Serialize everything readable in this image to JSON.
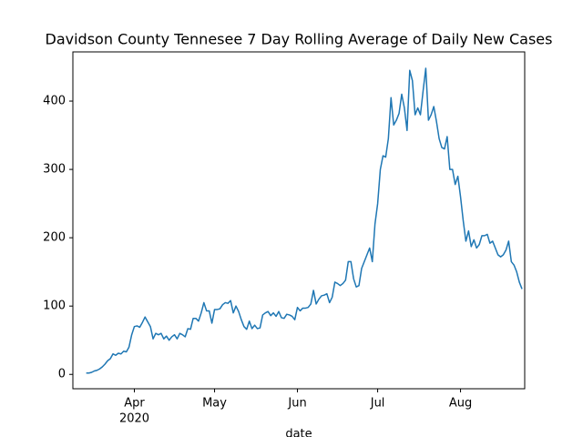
{
  "chart_data": {
    "type": "line",
    "title": "Davidson County Tennesee 7 Day Rolling Average of Daily New Cases",
    "x_label": "date",
    "x_year_label": "2020",
    "color": "#1f77b4",
    "values": [
      2,
      2,
      3,
      5,
      6,
      8,
      11,
      15,
      20,
      23,
      30,
      28,
      31,
      30,
      34,
      33,
      40,
      58,
      70,
      71,
      69,
      76,
      84,
      77,
      70,
      52,
      60,
      58,
      60,
      52,
      56,
      50,
      55,
      58,
      52,
      60,
      58,
      55,
      67,
      66,
      82,
      82,
      78,
      90,
      105,
      93,
      93,
      75,
      95,
      95,
      96,
      102,
      105,
      104,
      108,
      90,
      100,
      92,
      80,
      70,
      66,
      78,
      67,
      72,
      67,
      68,
      87,
      90,
      92,
      86,
      90,
      85,
      92,
      83,
      82,
      88,
      87,
      85,
      80,
      98,
      93,
      97,
      97,
      98,
      103,
      123,
      103,
      110,
      115,
      116,
      118,
      105,
      113,
      135,
      133,
      130,
      133,
      138,
      165,
      165,
      140,
      128,
      130,
      155,
      165,
      175,
      185,
      165,
      220,
      250,
      300,
      320,
      318,
      345,
      405,
      365,
      372,
      382,
      410,
      390,
      357,
      445,
      430,
      380,
      390,
      380,
      415,
      448,
      372,
      380,
      392,
      370,
      345,
      332,
      330,
      348,
      300,
      300,
      278,
      290,
      260,
      225,
      195,
      210,
      187,
      197,
      185,
      190,
      203,
      203,
      205,
      192,
      195,
      185,
      175,
      172,
      175,
      182,
      195,
      165,
      160,
      150,
      135,
      125
    ],
    "xlim": [
      -5,
      164
    ],
    "xticks": [
      {
        "value": 18,
        "label": "Apr"
      },
      {
        "value": 48,
        "label": "May"
      },
      {
        "value": 79,
        "label": "Jun"
      },
      {
        "value": 109,
        "label": "Jul"
      },
      {
        "value": 140,
        "label": "Aug"
      }
    ],
    "ylim": [
      -21,
      472
    ],
    "yticks": [
      0,
      100,
      200,
      300,
      400
    ],
    "grid": false
  }
}
